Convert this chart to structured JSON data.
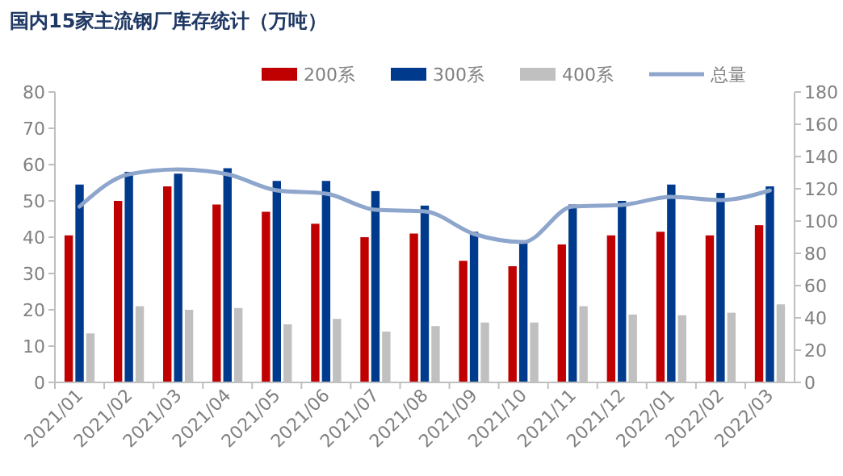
{
  "chart_data": {
    "type": "bar",
    "title": "国内15家主流钢厂库存统计（万吨）",
    "categories": [
      "2021/01",
      "2021/02",
      "2021/03",
      "2021/04",
      "2021/05",
      "2021/06",
      "2021/07",
      "2021/08",
      "2021/09",
      "2021/10",
      "2021/11",
      "2021/12",
      "2022/01",
      "2022/02",
      "2022/03"
    ],
    "series": [
      {
        "name": "200系",
        "color": "#c00000",
        "values": [
          40.5,
          50,
          54,
          49,
          47,
          43.7,
          40,
          41,
          33.5,
          32,
          38,
          40.5,
          41.5,
          40.5,
          43.3
        ]
      },
      {
        "name": "300系",
        "color": "#003a8c",
        "values": [
          54.5,
          58,
          57.5,
          59,
          55.5,
          55.5,
          52.7,
          48.7,
          41.5,
          38.5,
          49,
          50,
          54.5,
          52.2,
          54
        ]
      },
      {
        "name": "400系",
        "color": "#c0c0c0",
        "values": [
          13.5,
          21,
          20,
          20.5,
          16,
          17.5,
          14,
          15.5,
          16.5,
          16.5,
          21,
          18.7,
          18.5,
          19.2,
          21.5
        ]
      },
      {
        "name": "总量",
        "type": "line",
        "axis": "y2",
        "color": "#8ea6cc",
        "values": [
          109,
          129,
          132,
          129,
          119,
          117,
          107,
          106,
          92,
          87,
          109,
          110,
          115,
          113,
          119
        ]
      }
    ],
    "ylim": [
      0,
      80
    ],
    "yticks": [
      0,
      10,
      20,
      30,
      40,
      50,
      60,
      70,
      80
    ],
    "y2lim": [
      0,
      180
    ],
    "y2ticks": [
      0,
      20,
      40,
      60,
      80,
      100,
      120,
      140,
      160,
      180
    ],
    "legend": "top right",
    "grid": false
  }
}
